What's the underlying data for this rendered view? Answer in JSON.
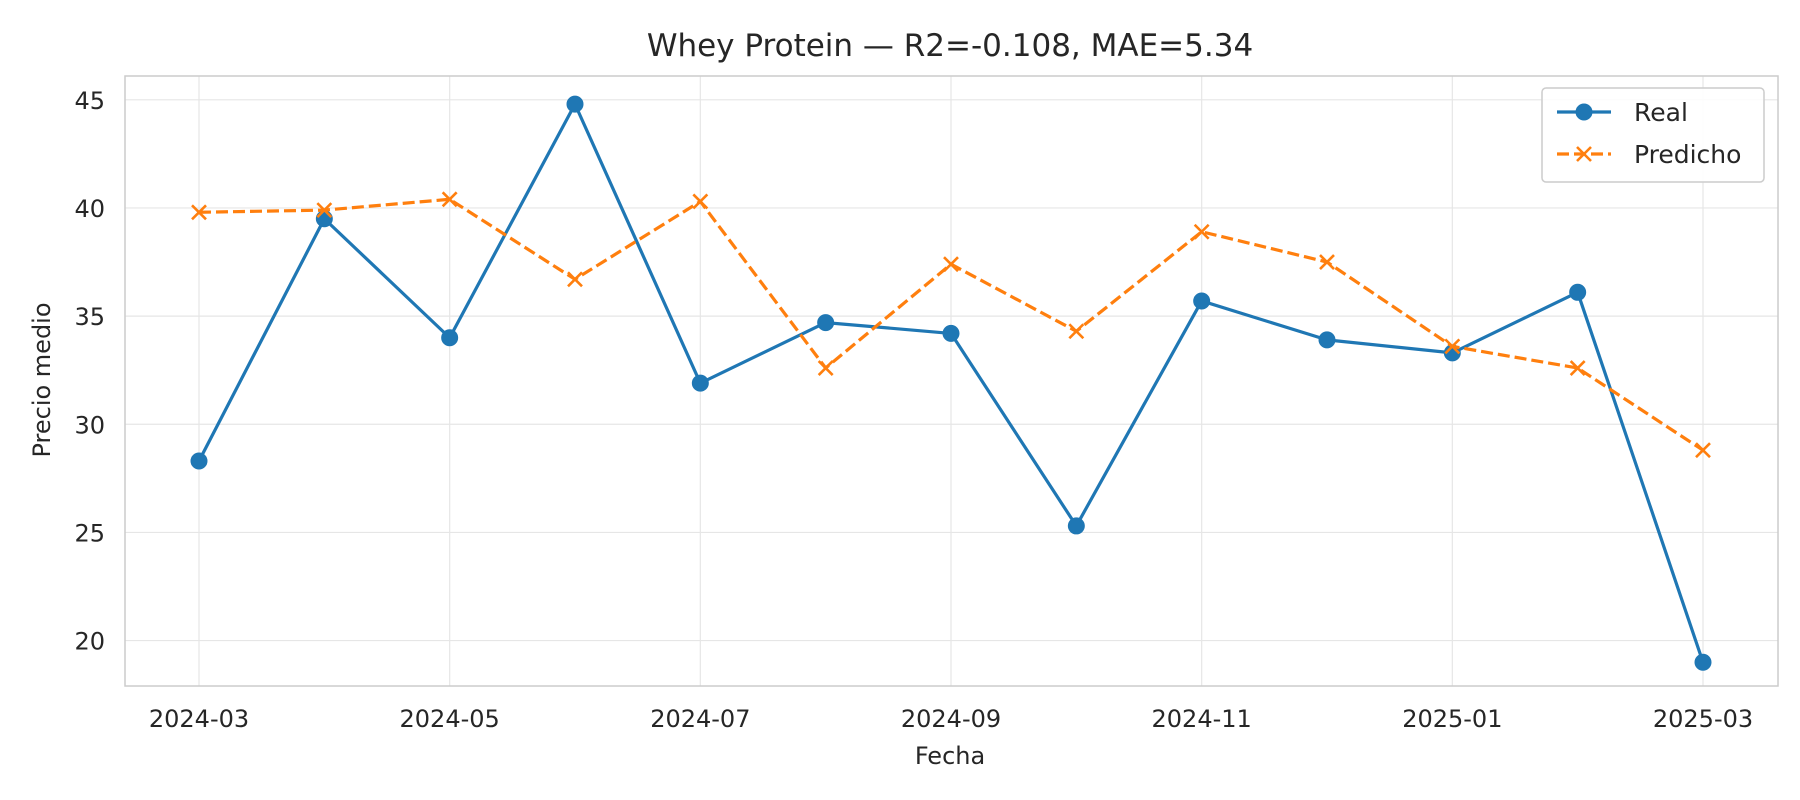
{
  "chart_data": {
    "type": "line",
    "title": "Whey Protein — R2=-0.108, MAE=5.34",
    "xlabel": "Fecha",
    "ylabel": "Precio medio",
    "x": [
      "2024-03",
      "2024-04",
      "2024-05",
      "2024-06",
      "2024-07",
      "2024-08",
      "2024-09",
      "2024-10",
      "2024-11",
      "2024-12",
      "2025-01",
      "2025-02",
      "2025-03"
    ],
    "x_ticks": [
      "2024-03",
      "2024-05",
      "2024-07",
      "2024-09",
      "2024-11",
      "2025-01",
      "2025-03"
    ],
    "y_ticks": [
      20,
      25,
      30,
      35,
      40,
      45
    ],
    "ylim": [
      17.9,
      46.1
    ],
    "grid": true,
    "legend_position": "top-right",
    "series": [
      {
        "name": "Real",
        "color": "#1f77b4",
        "marker": "circle",
        "line_style": "solid",
        "values": [
          28.3,
          39.5,
          34.0,
          44.8,
          31.9,
          34.7,
          34.2,
          25.3,
          35.7,
          33.9,
          33.3,
          36.1,
          19.0
        ]
      },
      {
        "name": "Predicho",
        "color": "#ff7f0e",
        "marker": "x",
        "line_style": "dashed",
        "values": [
          39.8,
          39.9,
          40.4,
          36.7,
          40.3,
          32.6,
          37.4,
          34.3,
          38.9,
          37.5,
          33.6,
          32.6,
          28.8
        ]
      }
    ]
  }
}
